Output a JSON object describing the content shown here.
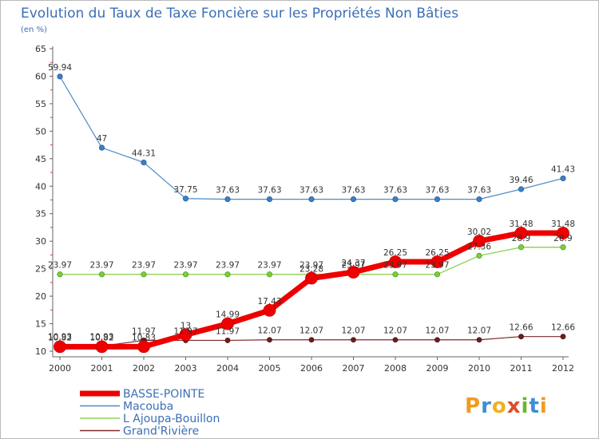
{
  "chart_data": {
    "type": "line",
    "title": "Evolution du Taux de Taxe Foncière sur les Propriétés Non Bâties",
    "subtitle": "(en %)",
    "xlabel": "",
    "ylabel": "",
    "x": [
      "2000",
      "2001",
      "2002",
      "2003",
      "2004",
      "2005",
      "2006",
      "2007",
      "2008",
      "2009",
      "2010",
      "2011",
      "2012"
    ],
    "ylim": [
      10,
      65
    ],
    "yticks": [
      "10",
      "15",
      "20",
      "25",
      "30",
      "35",
      "40",
      "45",
      "50",
      "55",
      "60",
      "65"
    ],
    "grid": false,
    "legend_position": "bottom-left",
    "series": [
      {
        "name": "BASSE-POINTE",
        "color": "#ee0000",
        "values": [
          10.82,
          10.82,
          10.83,
          13,
          14.99,
          17.43,
          23.28,
          24.37,
          26.25,
          26.25,
          30.02,
          31.48,
          31.48
        ],
        "labels": [
          "10.82",
          "10.82",
          "10.83",
          "13",
          "14.99",
          "17.43",
          "23.28",
          "24.37",
          "26.25",
          "26.25",
          "30.02",
          "31.48",
          "31.48"
        ]
      },
      {
        "name": "Macouba",
        "color": "#4a8ac6",
        "values": [
          59.94,
          47,
          44.31,
          37.75,
          37.63,
          37.63,
          37.63,
          37.63,
          37.63,
          37.63,
          37.63,
          39.46,
          41.43
        ],
        "labels": [
          "59.94",
          "47",
          "44.31",
          "37.75",
          "37.63",
          "37.63",
          "37.63",
          "37.63",
          "37.63",
          "37.63",
          "37.63",
          "39.46",
          "41.43"
        ]
      },
      {
        "name": "L  Ajoupa-Bouillon",
        "color": "#8ed456",
        "values": [
          23.97,
          23.97,
          23.97,
          23.97,
          23.97,
          23.97,
          23.97,
          23.97,
          23.97,
          23.97,
          27.36,
          28.9,
          28.9
        ],
        "labels": [
          "23.97",
          "23.97",
          "23.97",
          "23.97",
          "23.97",
          "23.97",
          "23.97",
          "23.97",
          "23.97",
          "23.97",
          "27.36",
          "28.9",
          "28.9"
        ]
      },
      {
        "name": "Grand'Rivière",
        "color": "#7a2a2a",
        "values": [
          10.93,
          10.93,
          11.97,
          11.97,
          11.97,
          12.07,
          12.07,
          12.07,
          12.07,
          12.07,
          12.07,
          12.66,
          12.66
        ],
        "labels": [
          "10.93",
          "10.93",
          "11.97",
          "11.97",
          "11.97",
          "12.07",
          "12.07",
          "12.07",
          "12.07",
          "12.07",
          "12.07",
          "12.66",
          "12.66"
        ]
      }
    ]
  },
  "logo": {
    "text": "Proxiti"
  }
}
